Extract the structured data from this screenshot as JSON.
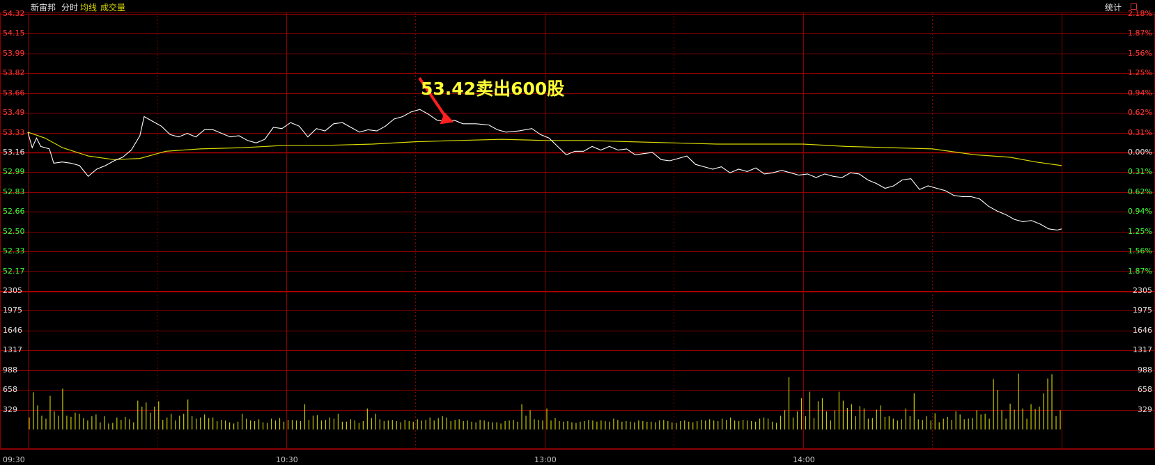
{
  "header": {
    "stock_name": "新宙邦",
    "mode": "分时",
    "avg_line_label": "均线",
    "volume_label": "成交量",
    "stats_button": "统计"
  },
  "colors": {
    "background": "#000000",
    "grid": "#8b0000",
    "up": "#ff3b3b",
    "down": "#3cff3c",
    "neutral": "#e0e0e0",
    "price_line": "#ffffff",
    "avg_line": "#d8d800",
    "volume_bar": "#c8c800",
    "annotation": "#ffff33",
    "arrow": "#ff2020"
  },
  "annotation": {
    "text": "53.42卖出600股",
    "price": 53.42,
    "time": "11:02"
  },
  "price_axis": {
    "labels": [
      "54.32",
      "54.15",
      "53.99",
      "53.82",
      "53.66",
      "53.49",
      "53.33",
      "53.16",
      "52.99",
      "52.83",
      "52.66",
      "52.50",
      "52.33",
      "52.17"
    ],
    "pct_labels": [
      "2.18%",
      "1.87%",
      "1.56%",
      "1.25%",
      "0.94%",
      "0.62%",
      "0.31%",
      "0.00%",
      "0.31%",
      "0.62%",
      "0.94%",
      "1.25%",
      "1.56%",
      "1.87%"
    ],
    "ref_price": "53.16"
  },
  "volume_axis": {
    "labels": [
      "2305",
      "1975",
      "1646",
      "1317",
      "988",
      "658",
      "329"
    ],
    "max": 2305
  },
  "time_axis": {
    "labels": [
      "09:30",
      "10:30",
      "13:00",
      "14:00"
    ]
  },
  "chart_data": {
    "type": "line",
    "session_minutes": 240,
    "ylim": [
      52.0,
      54.32
    ],
    "prev_close": 53.16,
    "series": [
      {
        "name": "分时",
        "points": [
          [
            0,
            53.33
          ],
          [
            1,
            53.2
          ],
          [
            2,
            53.28
          ],
          [
            3,
            53.21
          ],
          [
            5,
            53.19
          ],
          [
            6,
            53.07
          ],
          [
            8,
            53.08
          ],
          [
            10,
            53.07
          ],
          [
            12,
            53.05
          ],
          [
            14,
            52.96
          ],
          [
            16,
            53.02
          ],
          [
            18,
            53.05
          ],
          [
            20,
            53.09
          ],
          [
            22,
            53.12
          ],
          [
            24,
            53.18
          ],
          [
            26,
            53.3
          ],
          [
            27,
            53.46
          ],
          [
            29,
            53.42
          ],
          [
            31,
            53.38
          ],
          [
            33,
            53.31
          ],
          [
            35,
            53.29
          ],
          [
            37,
            53.32
          ],
          [
            39,
            53.29
          ],
          [
            41,
            53.35
          ],
          [
            43,
            53.35
          ],
          [
            45,
            53.32
          ],
          [
            47,
            53.29
          ],
          [
            49,
            53.3
          ],
          [
            51,
            53.26
          ],
          [
            53,
            53.24
          ],
          [
            55,
            53.27
          ],
          [
            57,
            53.37
          ],
          [
            59,
            53.36
          ],
          [
            61,
            53.41
          ],
          [
            63,
            53.38
          ],
          [
            65,
            53.29
          ],
          [
            67,
            53.36
          ],
          [
            69,
            53.34
          ],
          [
            71,
            53.4
          ],
          [
            73,
            53.41
          ],
          [
            75,
            53.37
          ],
          [
            77,
            53.33
          ],
          [
            79,
            53.35
          ],
          [
            81,
            53.34
          ],
          [
            83,
            53.38
          ],
          [
            85,
            53.44
          ],
          [
            87,
            53.46
          ],
          [
            89,
            53.5
          ],
          [
            91,
            53.52
          ],
          [
            93,
            53.48
          ],
          [
            95,
            53.43
          ],
          [
            97,
            53.42
          ],
          [
            99,
            53.43
          ],
          [
            101,
            53.4
          ],
          [
            104,
            53.4
          ],
          [
            107,
            53.39
          ],
          [
            109,
            53.35
          ],
          [
            111,
            53.33
          ],
          [
            114,
            53.34
          ],
          [
            117,
            53.36
          ],
          [
            119,
            53.31
          ],
          [
            121,
            53.28
          ],
          [
            123,
            53.21
          ],
          [
            125,
            53.14
          ],
          [
            127,
            53.17
          ],
          [
            129,
            53.17
          ],
          [
            131,
            53.21
          ],
          [
            133,
            53.18
          ],
          [
            135,
            53.21
          ],
          [
            137,
            53.18
          ],
          [
            139,
            53.19
          ],
          [
            141,
            53.14
          ],
          [
            143,
            53.15
          ],
          [
            145,
            53.16
          ],
          [
            147,
            53.1
          ],
          [
            149,
            53.09
          ],
          [
            151,
            53.11
          ],
          [
            153,
            53.13
          ],
          [
            155,
            53.06
          ],
          [
            157,
            53.04
          ],
          [
            159,
            53.02
          ],
          [
            161,
            53.04
          ],
          [
            163,
            52.99
          ],
          [
            165,
            53.02
          ],
          [
            167,
            53.0
          ],
          [
            169,
            53.03
          ],
          [
            171,
            52.98
          ],
          [
            173,
            52.99
          ],
          [
            175,
            53.01
          ],
          [
            177,
            52.99
          ],
          [
            179,
            52.97
          ],
          [
            181,
            52.98
          ],
          [
            183,
            52.95
          ],
          [
            185,
            52.98
          ],
          [
            187,
            52.96
          ],
          [
            189,
            52.95
          ],
          [
            191,
            52.99
          ],
          [
            193,
            52.98
          ],
          [
            195,
            52.93
          ],
          [
            197,
            52.9
          ],
          [
            199,
            52.86
          ],
          [
            201,
            52.88
          ],
          [
            203,
            52.93
          ],
          [
            205,
            52.94
          ],
          [
            207,
            52.85
          ],
          [
            209,
            52.88
          ],
          [
            211,
            52.86
          ],
          [
            213,
            52.84
          ],
          [
            215,
            52.8
          ],
          [
            217,
            52.79
          ],
          [
            219,
            52.79
          ],
          [
            221,
            52.77
          ],
          [
            223,
            52.71
          ],
          [
            225,
            52.67
          ],
          [
            227,
            52.64
          ],
          [
            229,
            52.6
          ],
          [
            231,
            52.58
          ],
          [
            233,
            52.59
          ],
          [
            235,
            52.56
          ],
          [
            237,
            52.52
          ],
          [
            239,
            52.51
          ],
          [
            240,
            52.52
          ]
        ]
      },
      {
        "name": "均线",
        "points": [
          [
            0,
            53.33
          ],
          [
            4,
            53.28
          ],
          [
            8,
            53.2
          ],
          [
            14,
            53.13
          ],
          [
            20,
            53.1
          ],
          [
            26,
            53.11
          ],
          [
            32,
            53.17
          ],
          [
            40,
            53.19
          ],
          [
            50,
            53.2
          ],
          [
            60,
            53.22
          ],
          [
            70,
            53.22
          ],
          [
            80,
            53.23
          ],
          [
            90,
            53.25
          ],
          [
            100,
            53.26
          ],
          [
            110,
            53.27
          ],
          [
            120,
            53.26
          ],
          [
            130,
            53.26
          ],
          [
            140,
            53.25
          ],
          [
            150,
            53.24
          ],
          [
            160,
            53.23
          ],
          [
            170,
            53.23
          ],
          [
            180,
            53.23
          ],
          [
            190,
            53.21
          ],
          [
            200,
            53.2
          ],
          [
            210,
            53.19
          ],
          [
            220,
            53.14
          ],
          [
            228,
            53.12
          ],
          [
            234,
            53.08
          ],
          [
            240,
            53.05
          ]
        ]
      }
    ],
    "volume": [
      200,
      620,
      400,
      230,
      180,
      560,
      300,
      230,
      680,
      230,
      210,
      280,
      260,
      190,
      150,
      220,
      250,
      120,
      220,
      100,
      110,
      200,
      160,
      210,
      170,
      120,
      480,
      380,
      450,
      280,
      380,
      470,
      160,
      200,
      260,
      150,
      230,
      260,
      500,
      220,
      180,
      200,
      250,
      190,
      200,
      140,
      160,
      150,
      120,
      100,
      130,
      260,
      180,
      150,
      140,
      170,
      120,
      110,
      180,
      150,
      190,
      130,
      160,
      160,
      150,
      140,
      420,
      160,
      230,
      240,
      150,
      160,
      200,
      180,
      260,
      130,
      130,
      170,
      150,
      110,
      140,
      350,
      190,
      260,
      170,
      140,
      150,
      160,
      140,
      120,
      160,
      140,
      130,
      170,
      150,
      160,
      200,
      150,
      190,
      220,
      200,
      140,
      160,
      170,
      140,
      150,
      130,
      120,
      160,
      150,
      130,
      120,
      120,
      100,
      140,
      150,
      160,
      130,
      420,
      230,
      320,
      170,
      160,
      150,
      350,
      150,
      190,
      140,
      130,
      140,
      120,
      110,
      130,
      140,
      160,
      150,
      130,
      150,
      140,
      130,
      180,
      160,
      130,
      140,
      130,
      120,
      150,
      140,
      130,
      130,
      120,
      150,
      160,
      140,
      120,
      110,
      140,
      150,
      130,
      120,
      140,
      160,
      150,
      170,
      150,
      140,
      180,
      160,
      200,
      150,
      140,
      160,
      150,
      140,
      130,
      180,
      200,
      180,
      130,
      110,
      230,
      320,
      870,
      200,
      300,
      520,
      220,
      630,
      190,
      470,
      520,
      300,
      150,
      320,
      630,
      480,
      360,
      420,
      220,
      390,
      350,
      180,
      190,
      330,
      400,
      210,
      220,
      180,
      150,
      170,
      350,
      220,
      600,
      170,
      160,
      220,
      150,
      270,
      120,
      180,
      210,
      160,
      300,
      250,
      170,
      180,
      190,
      320,
      250,
      260,
      180,
      840,
      660,
      320,
      180,
      430,
      330,
      930,
      350,
      180,
      420,
      340,
      380,
      600,
      850,
      920,
      220,
      320
    ]
  }
}
